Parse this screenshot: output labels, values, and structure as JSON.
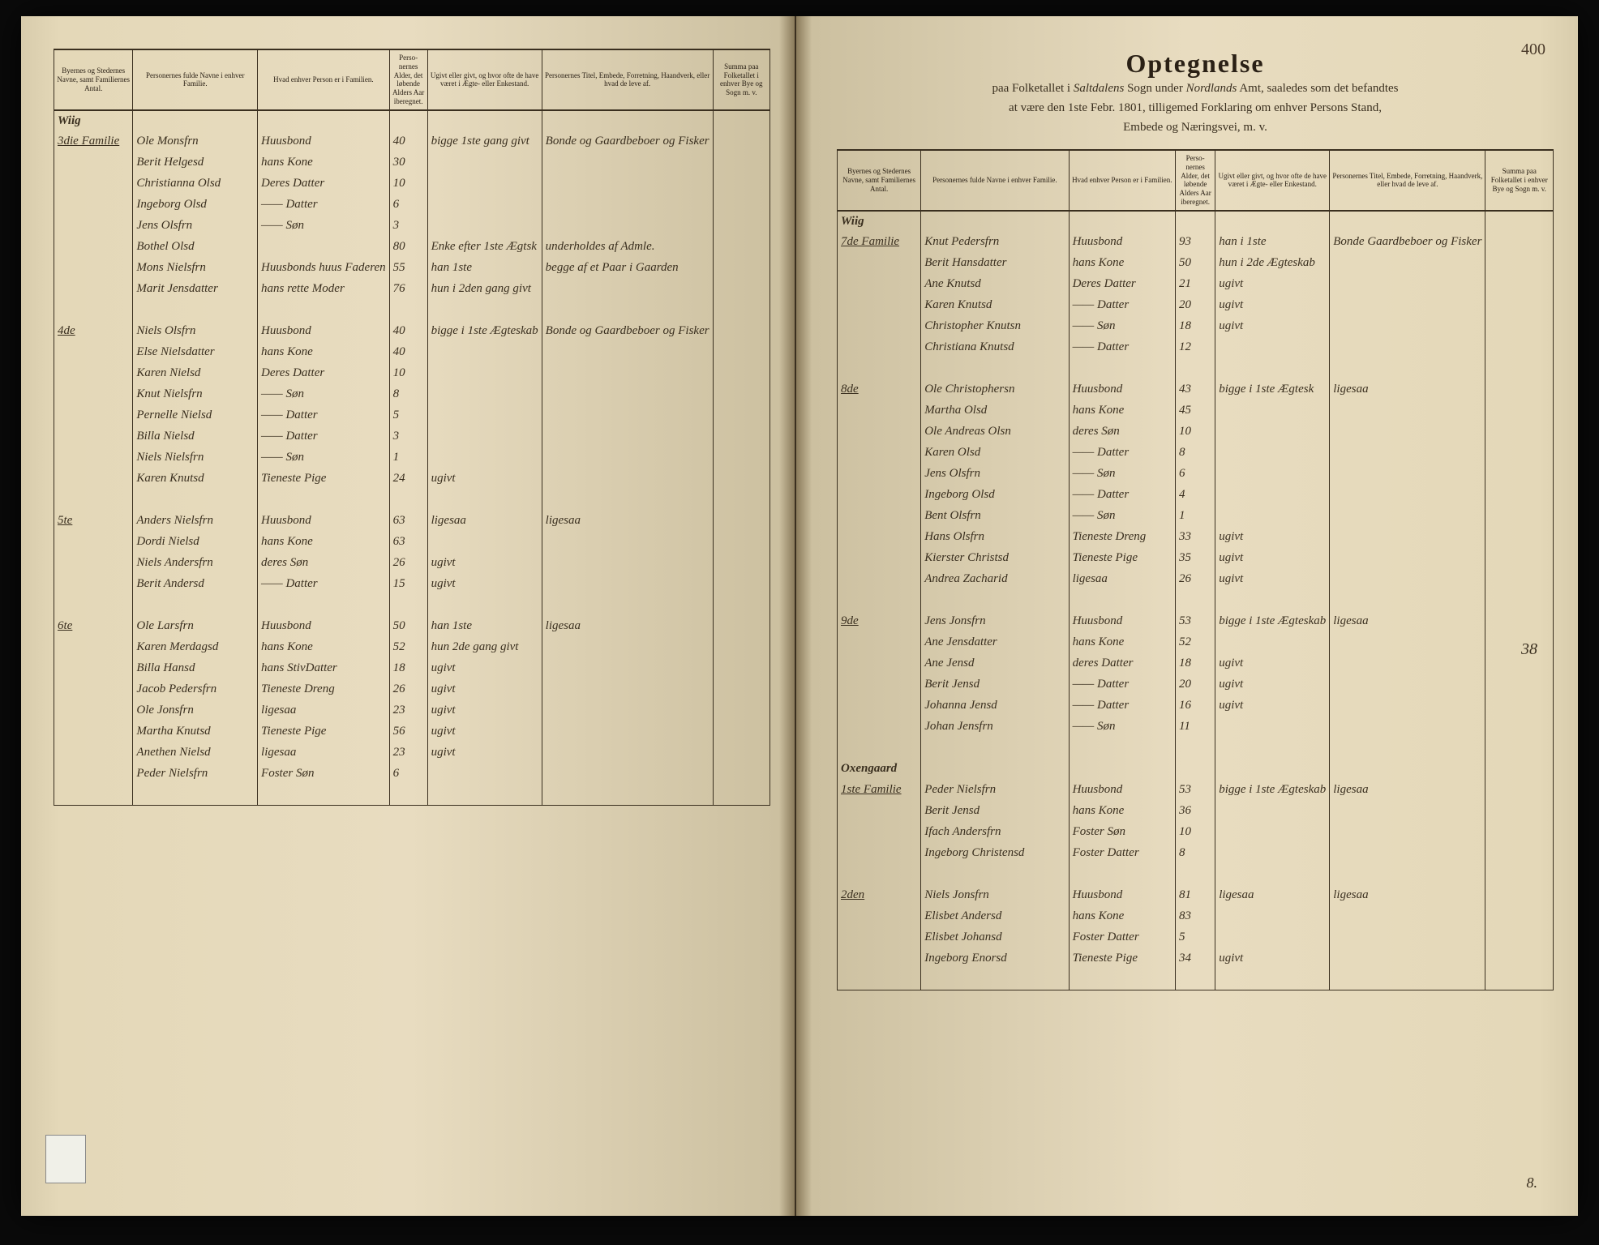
{
  "pageNumber": "400",
  "title": {
    "main": "Optegnelse",
    "line1_prefix": "paa Folketallet i",
    "line1_sogn": "Saltdalens",
    "line1_mid": "Sogn under",
    "line1_amt": "Nordlands",
    "line1_suffix": "Amt, saaledes som det befandtes",
    "line2": "at være den 1ste Febr. 1801, tilligemed Forklaring om enhver Persons Stand,",
    "line3": "Embede og Næringsvei, m. v."
  },
  "headers": {
    "place": "Byernes og Stedernes Navne, samt Familiernes Antal.",
    "name": "Personernes fulde Navne i enhver Familie.",
    "role": "Hvad enhver Person er i Familien.",
    "age": "Perso-nernes Alder, det løbende Alders Aar iberegnet.",
    "marital": "Ugivt eller givt, og hvor ofte de have været i Ægte- eller Enkestand.",
    "occupation": "Personernes Titel, Embede, Forretning, Haandverk, eller hvad de leve af.",
    "sum": "Summa paa Folketallet i enhver Bye og Sogn m. v."
  },
  "left": {
    "place": "Wiig",
    "families": [
      {
        "num": "3die Familie",
        "rows": [
          {
            "name": "Ole Monsfrn",
            "role": "Huusbond",
            "age": "40",
            "marital": "bigge 1ste gang givt",
            "occ": "Bonde og Gaardbeboer og Fisker"
          },
          {
            "name": "Berit Helgesd",
            "role": "hans Kone",
            "age": "30",
            "marital": "",
            "occ": ""
          },
          {
            "name": "Christianna Olsd",
            "role": "Deres Datter",
            "age": "10",
            "marital": "",
            "occ": ""
          },
          {
            "name": "Ingeborg Olsd",
            "role": "—— Datter",
            "age": "6",
            "marital": "",
            "occ": ""
          },
          {
            "name": "Jens Olsfrn",
            "role": "—— Søn",
            "age": "3",
            "marital": "",
            "occ": ""
          },
          {
            "name": "Bothel Olsd",
            "role": "",
            "age": "80",
            "marital": "Enke efter 1ste Ægtsk",
            "occ": "underholdes af Admle."
          },
          {
            "name": "Mons Nielsfrn",
            "role": "Huusbonds huus Faderen",
            "age": "55",
            "marital": "han 1ste",
            "occ": "begge af et Paar i Gaarden"
          },
          {
            "name": "Marit Jensdatter",
            "role": "hans rette Moder",
            "age": "76",
            "marital": "hun i 2den gang givt",
            "occ": ""
          }
        ]
      },
      {
        "num": "4de",
        "rows": [
          {
            "name": "Niels Olsfrn",
            "role": "Huusbond",
            "age": "40",
            "marital": "bigge i 1ste Ægteskab",
            "occ": "Bonde og Gaardbeboer og Fisker"
          },
          {
            "name": "Else Nielsdatter",
            "role": "hans Kone",
            "age": "40",
            "marital": "",
            "occ": ""
          },
          {
            "name": "Karen Nielsd",
            "role": "Deres Datter",
            "age": "10",
            "marital": "",
            "occ": ""
          },
          {
            "name": "Knut Nielsfrn",
            "role": "—— Søn",
            "age": "8",
            "marital": "",
            "occ": ""
          },
          {
            "name": "Pernelle Nielsd",
            "role": "—— Datter",
            "age": "5",
            "marital": "",
            "occ": ""
          },
          {
            "name": "Billa Nielsd",
            "role": "—— Datter",
            "age": "3",
            "marital": "",
            "occ": ""
          },
          {
            "name": "Niels Nielsfrn",
            "role": "—— Søn",
            "age": "1",
            "marital": "",
            "occ": ""
          },
          {
            "name": "Karen Knutsd",
            "role": "Tieneste Pige",
            "age": "24",
            "marital": "ugivt",
            "occ": ""
          }
        ]
      },
      {
        "num": "5te",
        "rows": [
          {
            "name": "Anders Nielsfrn",
            "role": "Huusbond",
            "age": "63",
            "marital": "ligesaa",
            "occ": "ligesaa"
          },
          {
            "name": "Dordi Nielsd",
            "role": "hans Kone",
            "age": "63",
            "marital": "",
            "occ": ""
          },
          {
            "name": "Niels Andersfrn",
            "role": "deres Søn",
            "age": "26",
            "marital": "ugivt",
            "occ": ""
          },
          {
            "name": "Berit Andersd",
            "role": "—— Datter",
            "age": "15",
            "marital": "ugivt",
            "occ": ""
          }
        ]
      },
      {
        "num": "6te",
        "rows": [
          {
            "name": "Ole Larsfrn",
            "role": "Huusbond",
            "age": "50",
            "marital": "han 1ste",
            "occ": "ligesaa"
          },
          {
            "name": "Karen Merdagsd",
            "role": "hans Kone",
            "age": "52",
            "marital": "hun 2de gang givt",
            "occ": ""
          },
          {
            "name": "Billa Hansd",
            "role": "hans StivDatter",
            "age": "18",
            "marital": "ugivt",
            "occ": ""
          },
          {
            "name": "Jacob Pedersfrn",
            "role": "Tieneste Dreng",
            "age": "26",
            "marital": "ugivt",
            "occ": ""
          },
          {
            "name": "Ole Jonsfrn",
            "role": "ligesaa",
            "age": "23",
            "marital": "ugivt",
            "occ": ""
          },
          {
            "name": "Martha Knutsd",
            "role": "Tieneste Pige",
            "age": "56",
            "marital": "ugivt",
            "occ": ""
          },
          {
            "name": "Anethen Nielsd",
            "role": "ligesaa",
            "age": "23",
            "marital": "ugivt",
            "occ": ""
          },
          {
            "name": "Peder Nielsfrn",
            "role": "Foster Søn",
            "age": "6",
            "marital": "",
            "occ": ""
          }
        ]
      }
    ]
  },
  "right": {
    "place": "Wiig",
    "midNumber": "38",
    "footerNumber": "8.",
    "families": [
      {
        "num": "7de Familie",
        "rows": [
          {
            "name": "Knut Pedersfrn",
            "role": "Huusbond",
            "age": "93",
            "marital": "han i 1ste",
            "occ": "Bonde Gaardbeboer og Fisker"
          },
          {
            "name": "Berit Hansdatter",
            "role": "hans Kone",
            "age": "50",
            "marital": "hun i 2de Ægteskab",
            "occ": ""
          },
          {
            "name": "Ane Knutsd",
            "role": "Deres Datter",
            "age": "21",
            "marital": "ugivt",
            "occ": ""
          },
          {
            "name": "Karen Knutsd",
            "role": "—— Datter",
            "age": "20",
            "marital": "ugivt",
            "occ": ""
          },
          {
            "name": "Christopher Knutsn",
            "role": "—— Søn",
            "age": "18",
            "marital": "ugivt",
            "occ": ""
          },
          {
            "name": "Christiana Knutsd",
            "role": "—— Datter",
            "age": "12",
            "marital": "",
            "occ": ""
          }
        ]
      },
      {
        "num": "8de",
        "rows": [
          {
            "name": "Ole Christophersn",
            "role": "Huusbond",
            "age": "43",
            "marital": "bigge i 1ste Ægtesk",
            "occ": "ligesaa"
          },
          {
            "name": "Martha Olsd",
            "role": "hans Kone",
            "age": "45",
            "marital": "",
            "occ": ""
          },
          {
            "name": "Ole Andreas Olsn",
            "role": "deres Søn",
            "age": "10",
            "marital": "",
            "occ": ""
          },
          {
            "name": "Karen Olsd",
            "role": "—— Datter",
            "age": "8",
            "marital": "",
            "occ": ""
          },
          {
            "name": "Jens Olsfrn",
            "role": "—— Søn",
            "age": "6",
            "marital": "",
            "occ": ""
          },
          {
            "name": "Ingeborg Olsd",
            "role": "—— Datter",
            "age": "4",
            "marital": "",
            "occ": ""
          },
          {
            "name": "Bent Olsfrn",
            "role": "—— Søn",
            "age": "1",
            "marital": "",
            "occ": ""
          },
          {
            "name": "Hans Olsfrn",
            "role": "Tieneste Dreng",
            "age": "33",
            "marital": "ugivt",
            "occ": ""
          },
          {
            "name": "Kierster Christsd",
            "role": "Tieneste Pige",
            "age": "35",
            "marital": "ugivt",
            "occ": ""
          },
          {
            "name": "Andrea Zacharid",
            "role": "ligesaa",
            "age": "26",
            "marital": "ugivt",
            "occ": ""
          }
        ]
      },
      {
        "num": "9de",
        "rows": [
          {
            "name": "Jens Jonsfrn",
            "role": "Huusbond",
            "age": "53",
            "marital": "bigge i 1ste Ægteskab",
            "occ": "ligesaa"
          },
          {
            "name": "Ane Jensdatter",
            "role": "hans Kone",
            "age": "52",
            "marital": "",
            "occ": ""
          },
          {
            "name": "Ane Jensd",
            "role": "deres Datter",
            "age": "18",
            "marital": "ugivt",
            "occ": ""
          },
          {
            "name": "Berit Jensd",
            "role": "—— Datter",
            "age": "20",
            "marital": "ugivt",
            "occ": ""
          },
          {
            "name": "Johanna Jensd",
            "role": "—— Datter",
            "age": "16",
            "marital": "ugivt",
            "occ": ""
          },
          {
            "name": "Johan Jensfrn",
            "role": "—— Søn",
            "age": "11",
            "marital": "",
            "occ": ""
          }
        ]
      }
    ],
    "place2": "Oxengaard",
    "families2": [
      {
        "num": "1ste Familie",
        "rows": [
          {
            "name": "Peder Nielsfrn",
            "role": "Huusbond",
            "age": "53",
            "marital": "bigge i 1ste Ægteskab",
            "occ": "ligesaa"
          },
          {
            "name": "Berit Jensd",
            "role": "hans Kone",
            "age": "36",
            "marital": "",
            "occ": ""
          },
          {
            "name": "Ifach Andersfrn",
            "role": "Foster Søn",
            "age": "10",
            "marital": "",
            "occ": ""
          },
          {
            "name": "Ingeborg Christensd",
            "role": "Foster Datter",
            "age": "8",
            "marital": "",
            "occ": ""
          }
        ]
      },
      {
        "num": "2den",
        "rows": [
          {
            "name": "Niels Jonsfrn",
            "role": "Huusbond",
            "age": "81",
            "marital": "ligesaa",
            "occ": "ligesaa"
          },
          {
            "name": "Elisbet Andersd",
            "role": "hans Kone",
            "age": "83",
            "marital": "",
            "occ": ""
          },
          {
            "name": "Elisbet Johansd",
            "role": "Foster Datter",
            "age": "5",
            "marital": "",
            "occ": ""
          },
          {
            "name": "Ingeborg Enorsd",
            "role": "Tieneste Pige",
            "age": "34",
            "marital": "ugivt",
            "occ": ""
          }
        ]
      }
    ]
  }
}
